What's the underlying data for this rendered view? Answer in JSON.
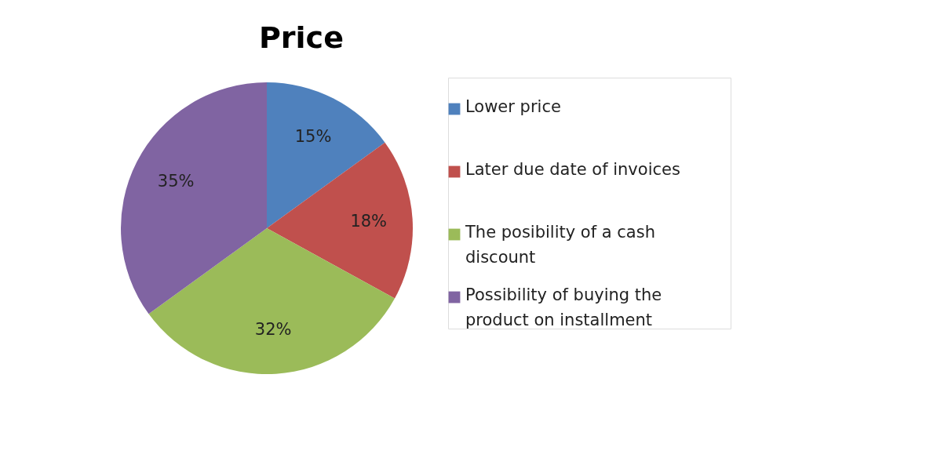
{
  "chart_data": {
    "type": "pie",
    "title": "Price",
    "categories": [
      "Lower price",
      "Later due date of invoices",
      "The posibility of a cash discount",
      "Possibility of buying the product on installment"
    ],
    "values": [
      15,
      18,
      32,
      35
    ],
    "colors": [
      "#4f81bd",
      "#c0504d",
      "#9bbb59",
      "#8064a2"
    ],
    "value_labels": [
      "15%",
      "18%",
      "32%",
      "35%"
    ],
    "legend": "right"
  }
}
